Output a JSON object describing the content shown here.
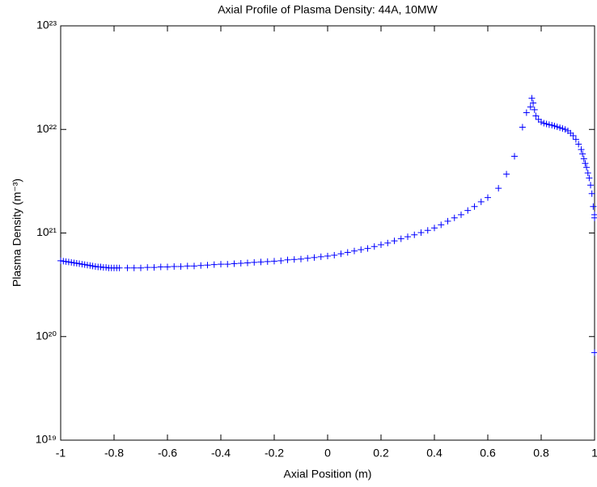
{
  "chart_data": {
    "type": "scatter",
    "title": "Axial Profile of Plasma Density: 44A, 10MW",
    "x_label": "Axial Position (m)",
    "y_label": "Plasma Density (m⁻³)",
    "x": [
      -1,
      -0.99,
      -0.98,
      -0.97,
      -0.96,
      -0.95,
      -0.94,
      -0.93,
      -0.92,
      -0.91,
      -0.9,
      -0.89,
      -0.88,
      -0.87,
      -0.86,
      -0.85,
      -0.84,
      -0.83,
      -0.82,
      -0.81,
      -0.8,
      -0.79,
      -0.78,
      -0.75,
      -0.725,
      -0.7,
      -0.675,
      -0.65,
      -0.625,
      -0.6,
      -0.575,
      -0.55,
      -0.525,
      -0.5,
      -0.475,
      -0.45,
      -0.425,
      -0.4,
      -0.375,
      -0.35,
      -0.325,
      -0.3,
      -0.275,
      -0.25,
      -0.225,
      -0.2,
      -0.175,
      -0.15,
      -0.125,
      -0.1,
      -0.075,
      -0.05,
      -0.025,
      0,
      0.025,
      0.05,
      0.075,
      0.1,
      0.125,
      0.15,
      0.175,
      0.2,
      0.225,
      0.25,
      0.275,
      0.3,
      0.325,
      0.35,
      0.375,
      0.4,
      0.425,
      0.45,
      0.475,
      0.5,
      0.525,
      0.55,
      0.575,
      0.6,
      0.64,
      0.67,
      0.7,
      0.73,
      0.745,
      0.76,
      0.765,
      0.77,
      0.775,
      0.78,
      0.79,
      0.8,
      0.81,
      0.82,
      0.83,
      0.84,
      0.85,
      0.86,
      0.87,
      0.88,
      0.89,
      0.9,
      0.91,
      0.92,
      0.93,
      0.94,
      0.95,
      0.955,
      0.96,
      0.965,
      0.97,
      0.975,
      0.98,
      0.985,
      0.99,
      0.995,
      1,
      1,
      1
    ],
    "values": [
      5.4e+20,
      5.35e+20,
      5.3e+20,
      5.25e+20,
      5.2e+20,
      5.15e+20,
      5.1e+20,
      5.05e+20,
      5e+20,
      4.95e+20,
      4.9e+20,
      4.85e+20,
      4.8e+20,
      4.75e+20,
      4.7e+20,
      4.7e+20,
      4.65e+20,
      4.65e+20,
      4.6e+20,
      4.6e+20,
      4.6e+20,
      4.6e+20,
      4.6e+20,
      4.6e+20,
      4.6e+20,
      4.6e+20,
      4.65e+20,
      4.65e+20,
      4.7e+20,
      4.7e+20,
      4.75e+20,
      4.75e+20,
      4.8e+20,
      4.8e+20,
      4.85e+20,
      4.9e+20,
      4.95e+20,
      5e+20,
      5e+20,
      5.05e+20,
      5.1e+20,
      5.15e+20,
      5.2e+20,
      5.25e+20,
      5.3e+20,
      5.35e+20,
      5.4e+20,
      5.5e+20,
      5.55e+20,
      5.6e+20,
      5.7e+20,
      5.8e+20,
      5.9e+20,
      6e+20,
      6.1e+20,
      6.3e+20,
      6.5e+20,
      6.7e+20,
      6.9e+20,
      7.1e+20,
      7.4e+20,
      7.7e+20,
      8e+20,
      8.4e+20,
      8.8e+20,
      9.2e+20,
      9.6e+20,
      1.01e+21,
      1.06e+21,
      1.12e+21,
      1.2e+21,
      1.3e+21,
      1.4e+21,
      1.5e+21,
      1.65e+21,
      1.8e+21,
      2e+21,
      2.2e+21,
      2.7e+21,
      3.7e+21,
      5.5e+21,
      1.05e+22,
      1.45e+22,
      1.65e+22,
      2e+22,
      1.8e+22,
      1.55e+22,
      1.35e+22,
      1.25e+22,
      1.18e+22,
      1.15e+22,
      1.13e+22,
      1.11e+22,
      1.1e+22,
      1.08e+22,
      1.06e+22,
      1.04e+22,
      1.02e+22,
      1e+22,
      9.7e+21,
      9.2e+21,
      8.7e+21,
      8e+21,
      7.2e+21,
      6.4e+21,
      5.8e+21,
      5.2e+21,
      4.7e+21,
      4.3e+21,
      3.8e+21,
      3.4e+21,
      2.9e+21,
      2.4e+21,
      1.8e+21,
      1.5e+21,
      1.4e+21,
      7e+19
    ],
    "color": "#0000ff",
    "xlim": [
      -1,
      1
    ],
    "xticks": [
      -1,
      -0.8,
      -0.6,
      -0.4,
      -0.2,
      0,
      0.2,
      0.4,
      0.6,
      0.8,
      1
    ],
    "ylim": [
      1e+19,
      1e+23
    ],
    "yticks": [
      {
        "value": 1e+19,
        "label": "10¹⁹"
      },
      {
        "value": 1e+20,
        "label": "10²⁰"
      },
      {
        "value": 1e+21,
        "label": "10²¹"
      },
      {
        "value": 1e+22,
        "label": "10²²"
      },
      {
        "value": 1e+23,
        "label": "10²³"
      }
    ],
    "y_log": true
  }
}
